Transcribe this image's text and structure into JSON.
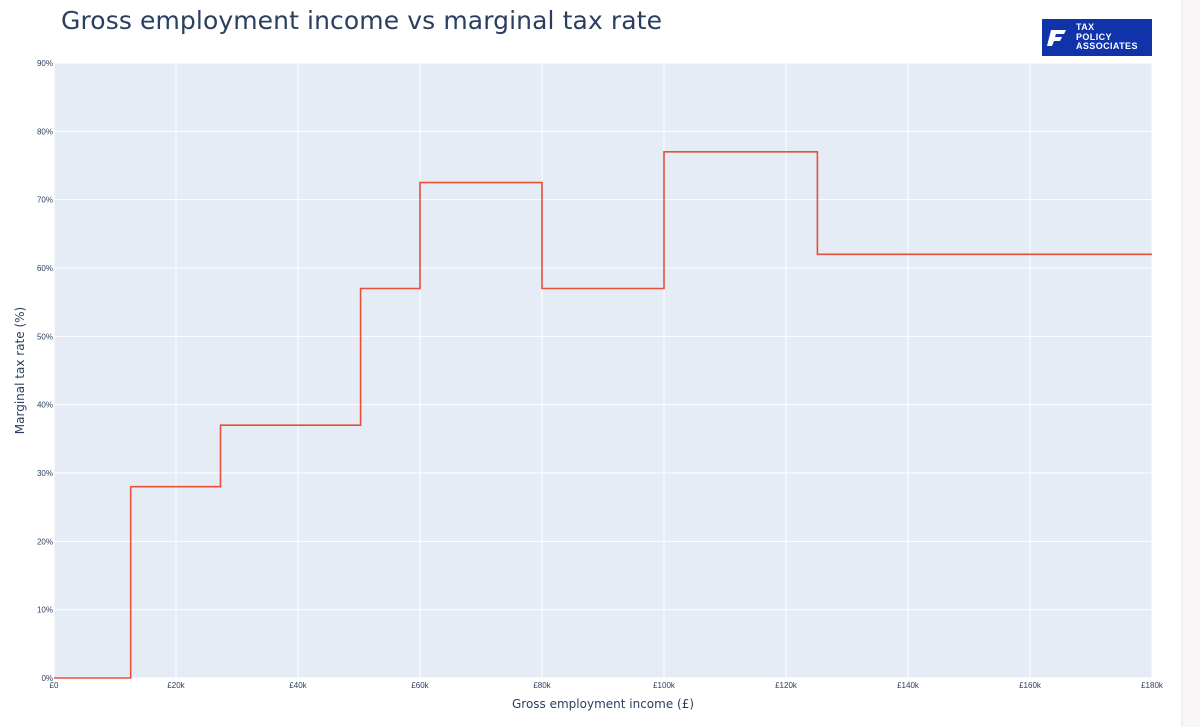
{
  "title": "Gross employment income vs marginal tax rate",
  "logo": {
    "line1": "TAX",
    "line2": "POLICY",
    "line3": "ASSOCIATES",
    "color": "#1133aa"
  },
  "chart_data": {
    "type": "line",
    "line_shape": "step",
    "title": "Gross employment income vs marginal tax rate",
    "xlabel": "Gross employment income (£)",
    "ylabel": "Marginal tax rate (%)",
    "xlim": [
      0,
      180000
    ],
    "ylim": [
      0,
      90
    ],
    "grid": true,
    "plot_background": "#e5ecf6",
    "line_color": "#e8503a",
    "x_ticks": [
      {
        "value": 0,
        "label": "£0"
      },
      {
        "value": 20000,
        "label": "£20k"
      },
      {
        "value": 40000,
        "label": "£40k"
      },
      {
        "value": 60000,
        "label": "£60k"
      },
      {
        "value": 80000,
        "label": "£80k"
      },
      {
        "value": 100000,
        "label": "£100k"
      },
      {
        "value": 120000,
        "label": "£120k"
      },
      {
        "value": 140000,
        "label": "£140k"
      },
      {
        "value": 160000,
        "label": "£160k"
      },
      {
        "value": 180000,
        "label": "£180k"
      }
    ],
    "y_ticks": [
      {
        "value": 0,
        "label": "0%"
      },
      {
        "value": 10,
        "label": "10%"
      },
      {
        "value": 20,
        "label": "20%"
      },
      {
        "value": 30,
        "label": "30%"
      },
      {
        "value": 40,
        "label": "40%"
      },
      {
        "value": 50,
        "label": "50%"
      },
      {
        "value": 60,
        "label": "60%"
      },
      {
        "value": 70,
        "label": "70%"
      },
      {
        "value": 80,
        "label": "80%"
      },
      {
        "value": 90,
        "label": "90%"
      }
    ],
    "series": [
      {
        "points": [
          [
            0,
            0
          ],
          [
            12570,
            0
          ],
          [
            12570,
            28
          ],
          [
            27300,
            28
          ],
          [
            27300,
            37
          ],
          [
            50270,
            37
          ],
          [
            50270,
            57
          ],
          [
            60000,
            57
          ],
          [
            60000,
            72.5
          ],
          [
            80000,
            72.5
          ],
          [
            80000,
            57
          ],
          [
            100000,
            57
          ],
          [
            100000,
            77
          ],
          [
            125140,
            77
          ],
          [
            125140,
            62
          ],
          [
            180000,
            62
          ]
        ]
      }
    ]
  }
}
